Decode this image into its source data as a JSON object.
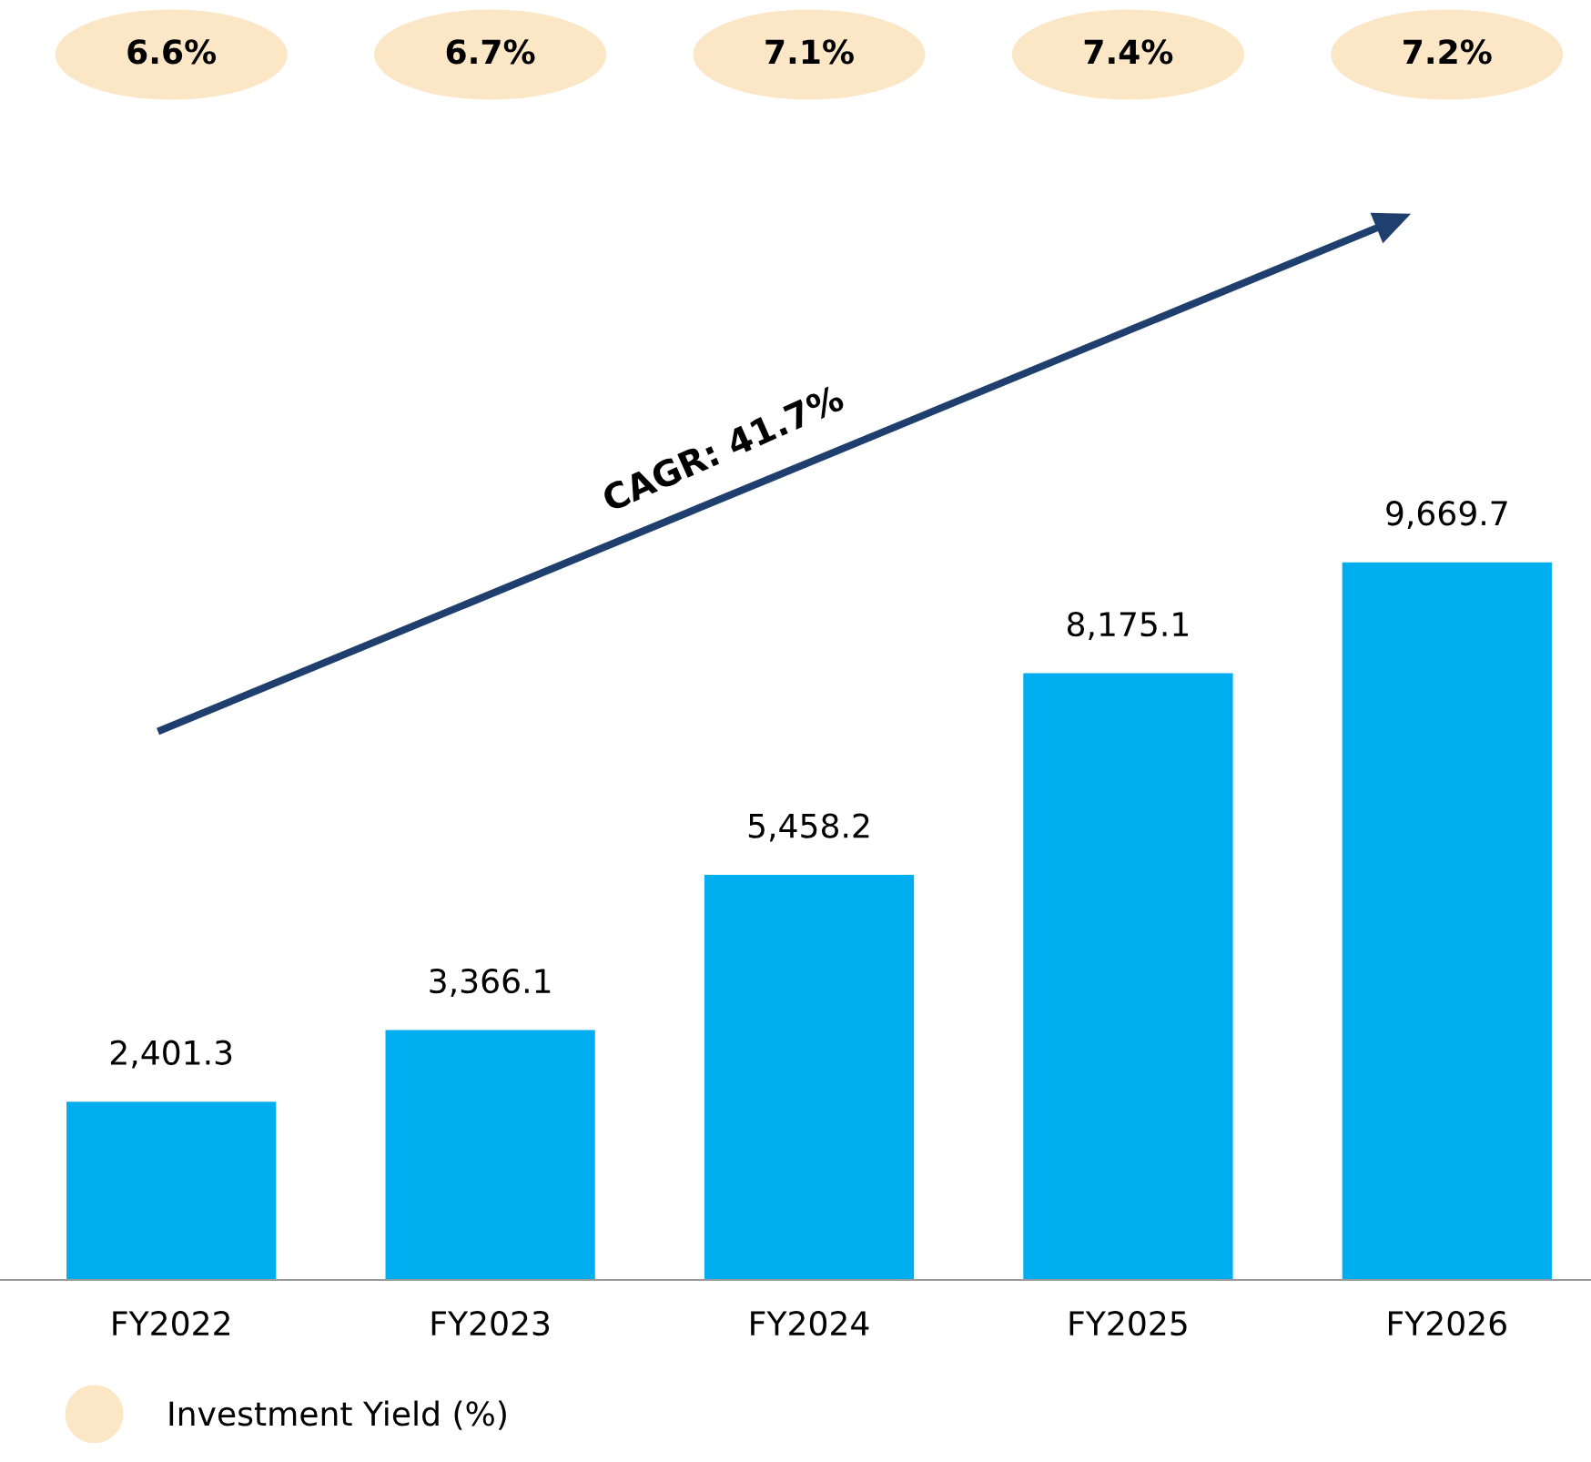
{
  "chart_data": [
    {
      "type": "other",
      "categories": [
        null,
        null,
        null,
        null,
        null
      ],
      "series": [
        {
          "name": "Investment Yield (%)",
          "color": "#fbe7c6",
          "values": [
            6.6,
            6.7,
            7.1,
            7.4,
            7.2
          ],
          "value_labels": [
            "6.6%",
            "6.7%",
            "7.1%",
            "7.4%",
            "7.2%"
          ]
        }
      ],
      "legend": "bottom left"
    },
    {
      "type": "bar",
      "categories": [
        "FY2022",
        "FY2023",
        "FY2024",
        "FY2025",
        "FY2026"
      ],
      "series": [
        {
          "color": "#00aeef",
          "values": [
            2401.3,
            3366.1,
            5458.2,
            8175.1,
            9669.7
          ],
          "value_labels": [
            "2,401.3",
            "3,366.1",
            "5,458.2",
            "8,175.1",
            "9,669.7"
          ]
        }
      ],
      "annotations": [
        "CAGR: 41.7%"
      ]
    }
  ]
}
